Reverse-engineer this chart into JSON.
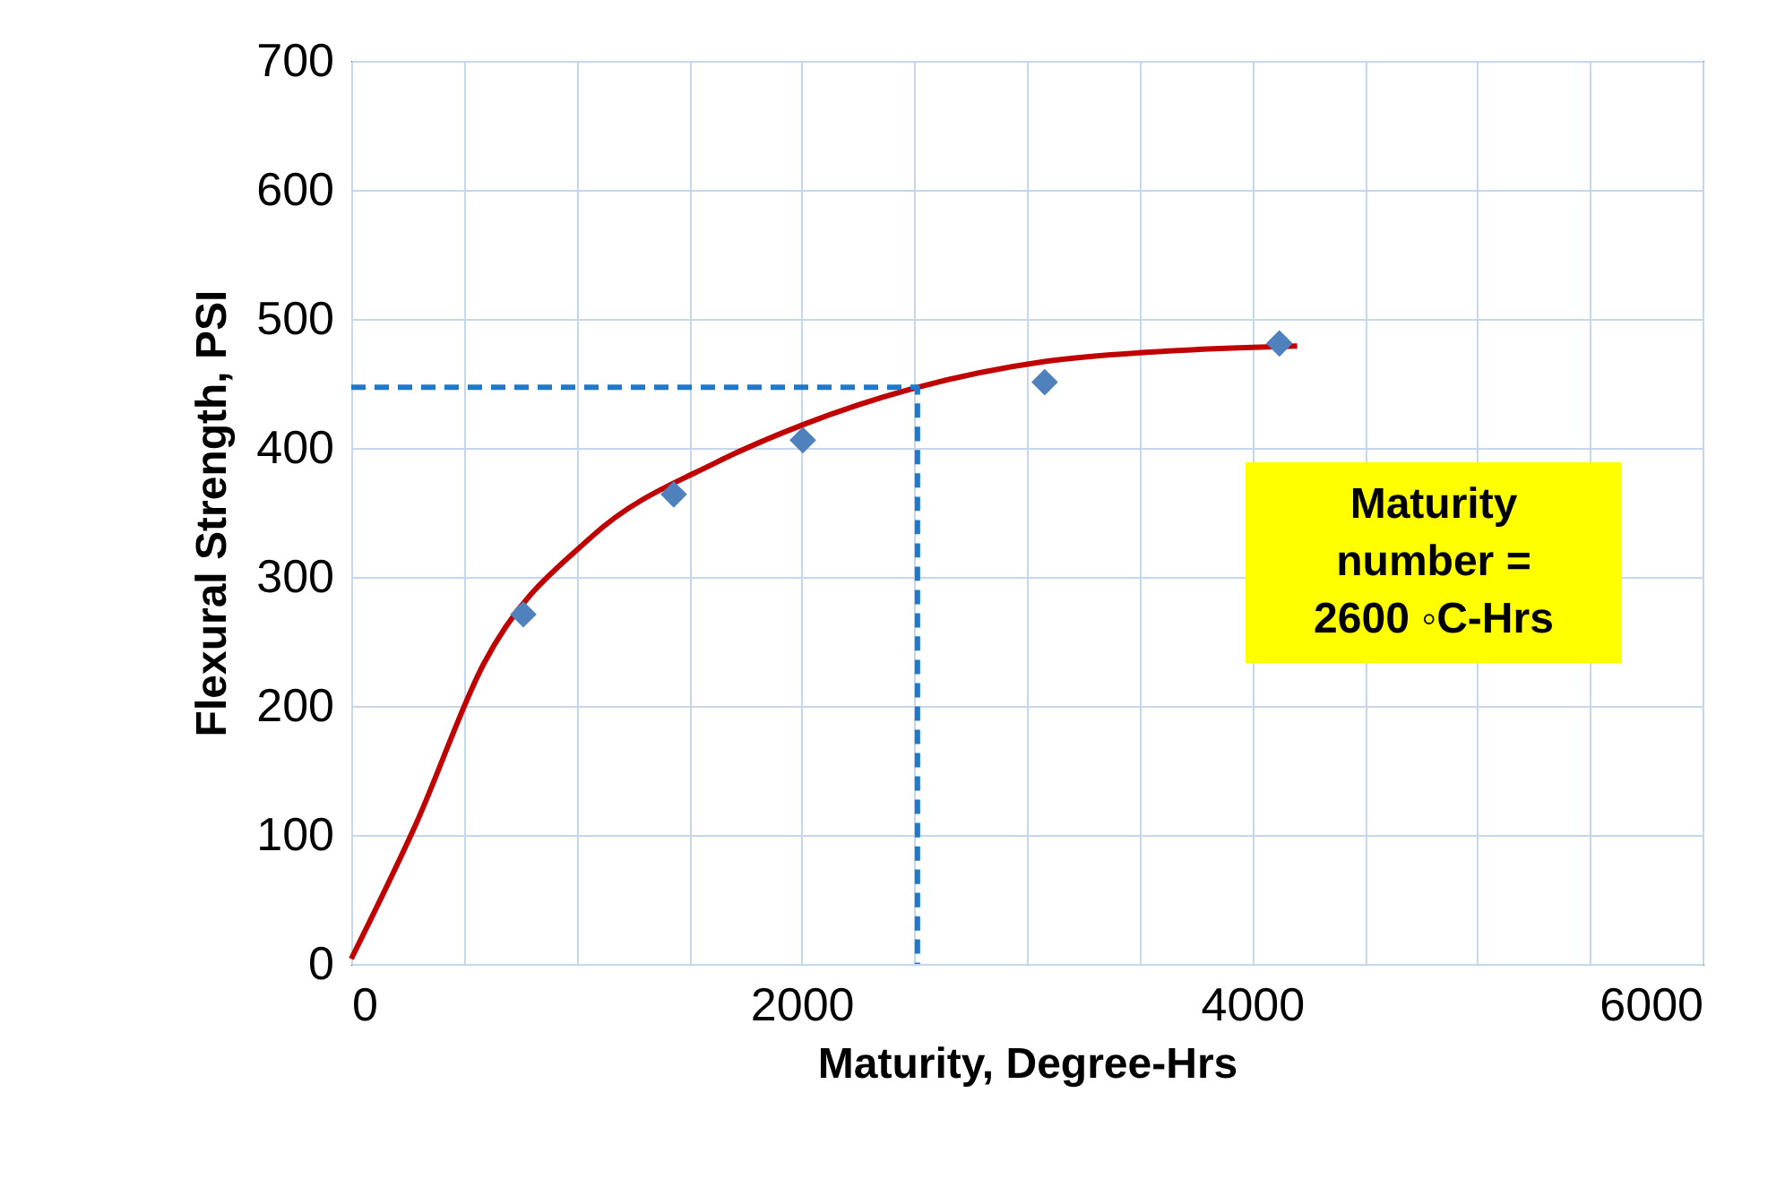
{
  "chart_data": {
    "type": "line",
    "xlabel": "Maturity, Degree-Hrs",
    "ylabel": "Flexural Strength, PSI",
    "xlim": [
      0,
      6000
    ],
    "ylim": [
      0,
      700
    ],
    "xticks": [
      0,
      {
        "value": 500,
        "label": null
      },
      {
        "value": 1000,
        "label": null
      },
      {
        "value": 1500,
        "label": null
      },
      2000,
      {
        "value": 2500,
        "label": null
      },
      {
        "value": 3000,
        "label": null
      },
      {
        "value": 3500,
        "label": null
      },
      4000,
      {
        "value": 4500,
        "label": null
      },
      {
        "value": 5000,
        "label": null
      },
      {
        "value": 5500,
        "label": null
      },
      6000
    ],
    "yticks": [
      0,
      100,
      200,
      300,
      400,
      500,
      600,
      700
    ],
    "grid": true,
    "annotations": [
      "Maturity number = 2600 ◦C-Hrs"
    ],
    "series": [
      {
        "color": "#c00000",
        "marker": "none",
        "x": [
          0,
          286,
          589,
          1066,
          1623,
          2005,
          2514,
          3079,
          3612,
          4000,
          4200
        ],
        "values": [
          4,
          108,
          233,
          331,
          389,
          418,
          447,
          467,
          475,
          478,
          479
        ]
      },
      {
        "color": "#1f78c8",
        "marker": "none",
        "line_style": "dashed",
        "x": [
          0,
          2514,
          2514
        ],
        "values": [
          447,
          447,
          0
        ]
      },
      {
        "type": "scatter",
        "color": "#4f81bd",
        "marker": "diamond",
        "x": [
          764,
          1432,
          2005,
          3079,
          4121
        ],
        "values": [
          271,
          364,
          406,
          451,
          481
        ]
      }
    ]
  }
}
